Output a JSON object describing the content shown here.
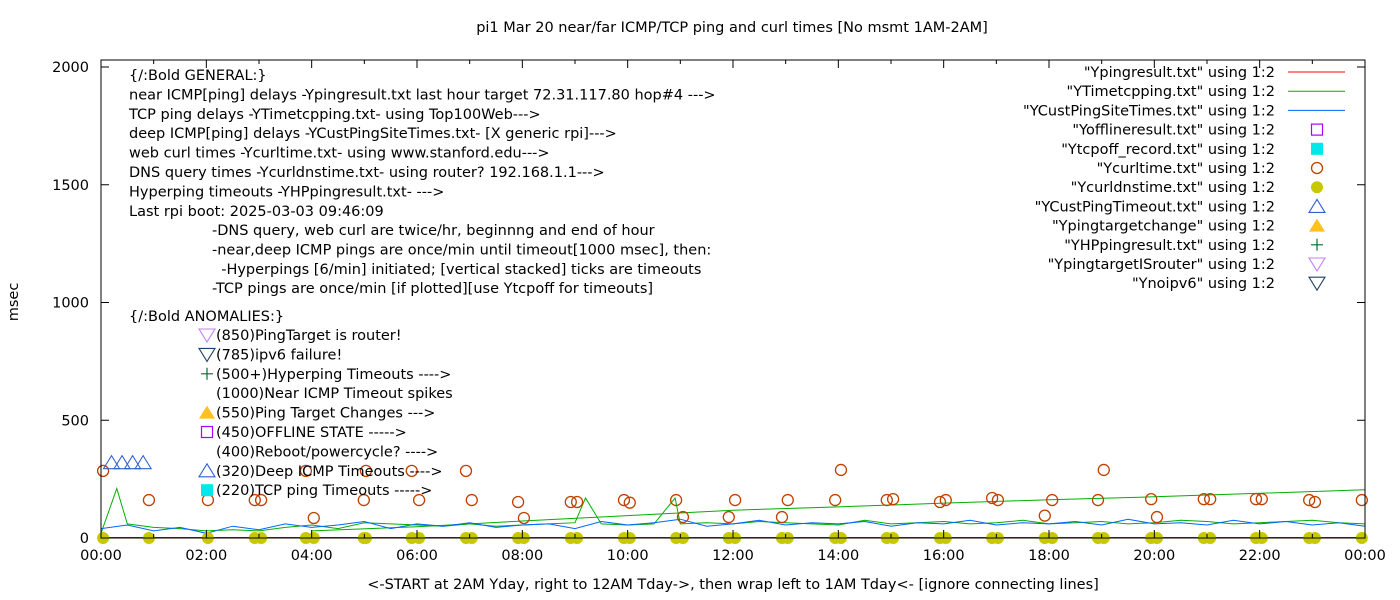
{
  "chart_data": {
    "type": "line",
    "title": "pi1 Mar 20  near/far ICMP/TCP ping and curl times [No msmt 1AM-2AM]",
    "xlabel": "<-START at 2AM Yday, right to 12AM Tday->, then wrap left to 1AM Tday<- [ignore connecting lines]",
    "ylabel": "msec",
    "xlim": [
      0,
      24
    ],
    "ylim": [
      0,
      2040
    ],
    "x_unit": "hour of day",
    "xticks": [
      "00:00",
      "02:00",
      "04:00",
      "06:00",
      "08:00",
      "10:00",
      "12:00",
      "14:00",
      "16:00",
      "18:00",
      "20:00",
      "22:00",
      "00:00"
    ],
    "yticks": [
      "0",
      "500",
      "1000",
      "1500",
      "2000"
    ],
    "grid": false,
    "legend_placement": "top-right",
    "series": [
      {
        "name": "\"Ypingresult.txt\" using 1:2",
        "style": "line",
        "color": "#ff0000",
        "x": [
          0,
          24
        ],
        "y": [
          2,
          2
        ]
      },
      {
        "name": "\"YTimetcpping.txt\" using 1:2",
        "style": "line",
        "color": "#00b000",
        "x": [
          0,
          0.3,
          0.5,
          1,
          1.5,
          2,
          2.5,
          3,
          3.5,
          4,
          4.5,
          5,
          5.5,
          6,
          6.5,
          7,
          7.5,
          8,
          8.5,
          9,
          9.2,
          9.5,
          10,
          10.5,
          10.9,
          11,
          11.5,
          12,
          12.5,
          13,
          13.5,
          14,
          14.5,
          15,
          15.5,
          16,
          16.5,
          17,
          17.5,
          18,
          18.5,
          19,
          19.5,
          20,
          20.5,
          21,
          21.5,
          22,
          22.5,
          23,
          23.5,
          24
        ],
        "y": [
          20,
          210,
          60,
          45,
          40,
          30,
          35,
          30,
          45,
          55,
          40,
          65,
          60,
          55,
          50,
          60,
          50,
          55,
          60,
          65,
          170,
          60,
          55,
          60,
          170,
          60,
          65,
          60,
          70,
          65,
          60,
          55,
          75,
          60,
          65,
          70,
          60,
          65,
          75,
          60,
          65,
          70,
          60,
          65,
          75,
          70,
          60,
          65,
          70,
          75,
          65,
          60
        ]
      },
      {
        "name": "\"YTimetcpping.txt\" trend",
        "style": "line",
        "color": "#00b000",
        "x": [
          4,
          6,
          8,
          10,
          12,
          14,
          16,
          18,
          20,
          22,
          24
        ],
        "y": [
          30,
          48,
          72,
          95,
          118,
          132,
          148,
          162,
          175,
          190,
          205
        ]
      },
      {
        "name": "\"YCustPingSiteTimes.txt\" using 1:2",
        "style": "line",
        "color": "#0066ff",
        "x": [
          0,
          0.5,
          1,
          1.5,
          2,
          2.5,
          3,
          3.5,
          4,
          4.5,
          5,
          5.5,
          6,
          6.5,
          7,
          7.5,
          8,
          8.5,
          9,
          9.5,
          10,
          10.5,
          11,
          11.5,
          12,
          12.5,
          13,
          13.5,
          14,
          14.5,
          15,
          15.5,
          16,
          16.5,
          17,
          17.5,
          18,
          18.5,
          19,
          19.5,
          20,
          20.5,
          21,
          21.5,
          22,
          22.5,
          23,
          23.5,
          24
        ],
        "y": [
          40,
          55,
          30,
          45,
          20,
          50,
          35,
          60,
          45,
          55,
          70,
          40,
          60,
          50,
          65,
          45,
          55,
          60,
          40,
          70,
          55,
          65,
          80,
          50,
          60,
          75,
          55,
          65,
          60,
          70,
          50,
          65,
          60,
          75,
          55,
          65,
          60,
          70,
          55,
          80,
          60,
          65,
          55,
          75,
          60,
          70,
          55,
          65,
          50
        ]
      },
      {
        "name": "\"Yofflineresult.txt\" using 1:2",
        "style": "open-square",
        "color": "#b000ff",
        "x": [],
        "y": []
      },
      {
        "name": "\"Ytcpoff_record.txt\" using 1:2",
        "style": "filled-square",
        "color": "#00e8e8",
        "x": [],
        "y": []
      },
      {
        "name": "\"Ycurltime.txt\" using 1:2",
        "style": "open-circle",
        "color": "#c04000",
        "x": [
          0.04,
          0.91,
          2.03,
          2.92,
          3.04,
          3.89,
          4.04,
          4.99,
          5.03,
          5.9,
          6.04,
          6.93,
          7.04,
          7.92,
          8.03,
          8.92,
          9.04,
          9.93,
          10.04,
          10.92,
          11.05,
          11.92,
          12.04,
          12.93,
          13.04,
          13.94,
          14.05,
          14.92,
          15.04,
          15.93,
          16.04,
          16.92,
          17.03,
          17.92,
          18.06,
          18.93,
          19.04,
          19.94,
          20.05,
          20.94,
          21.06,
          21.93,
          22.04,
          22.94,
          23.05,
          23.94
        ],
        "y": [
          285,
          161,
          161,
          161,
          161,
          285,
          85,
          161,
          285,
          285,
          161,
          285,
          161,
          153,
          85,
          153,
          153,
          161,
          150,
          161,
          89,
          89,
          161,
          89,
          161,
          161,
          289,
          161,
          165,
          153,
          161,
          170,
          161,
          95,
          161,
          161,
          289,
          165,
          89,
          165,
          165,
          165,
          165,
          161,
          153,
          161
        ]
      },
      {
        "name": "\"Ycurldnstime.txt\" using 1:2",
        "style": "filled-circle",
        "color": "#c8c800",
        "x": [
          0.04,
          0.91,
          2.03,
          2.92,
          3.04,
          3.89,
          4.04,
          4.99,
          5.03,
          5.9,
          6.04,
          6.93,
          7.04,
          7.92,
          8.03,
          8.92,
          9.04,
          9.93,
          10.04,
          10.92,
          11.05,
          11.92,
          12.04,
          12.93,
          13.04,
          13.94,
          14.05,
          14.92,
          15.04,
          15.93,
          16.04,
          16.92,
          17.03,
          17.92,
          18.06,
          18.93,
          19.04,
          19.94,
          20.05,
          20.94,
          21.06,
          21.93,
          22.04,
          22.94,
          23.05,
          23.94
        ],
        "y": [
          0,
          0,
          0,
          0,
          0,
          0,
          0,
          0,
          0,
          0,
          0,
          0,
          0,
          0,
          0,
          0,
          0,
          0,
          0,
          0,
          0,
          0,
          0,
          0,
          0,
          0,
          0,
          0,
          0,
          0,
          0,
          0,
          0,
          0,
          0,
          0,
          0,
          0,
          0,
          0,
          0,
          0,
          0,
          0,
          0,
          0
        ]
      },
      {
        "name": "\"YCustPingTimeout.txt\" using 1:2",
        "style": "open-triangle-up",
        "color": "#3060d0",
        "x": [
          0.2,
          0.4,
          0.6,
          0.8
        ],
        "y": [
          320,
          320,
          320,
          320
        ]
      },
      {
        "name": "\"Ypingtargetchange\" using 1:2",
        "style": "filled-triangle-up",
        "color": "#ffc020",
        "x": [],
        "y": []
      },
      {
        "name": "\"YHPpingresult.txt\" using 1:2",
        "style": "plus",
        "color": "#007030",
        "x": [],
        "y": []
      },
      {
        "name": "\"YpingtargetISrouter\" using 1:2",
        "style": "open-triangle-down",
        "color": "#c080ff",
        "x": [],
        "y": []
      },
      {
        "name": "\"Ynoipv6\" using 1:2",
        "style": "open-triangle-down",
        "color": "#204060",
        "x": [],
        "y": []
      }
    ],
    "annotations": {
      "general": [
        "{/:Bold GENERAL:}",
        "near ICMP[ping] delays -Ypingresult.txt last hour target 72.31.117.80 hop#4 --->",
        "TCP ping delays -YTimetcpping.txt- using Top100Web--->",
        "deep ICMP[ping] delays -YCustPingSiteTimes.txt- [X generic rpi]--->",
        "web curl times -Ycurltime.txt- using www.stanford.edu--->",
        "DNS query times -Ycurldnstime.txt- using router? 192.168.1.1--->",
        "Hyperping timeouts -YHPpingresult.txt- --->",
        "Last rpi boot: 2025-03-03 09:46:09"
      ],
      "notes": [
        "-DNS query, web curl are twice/hr, beginnng and end of hour",
        "-near,deep ICMP pings are once/min until timeout[1000 msec], then:",
        "  -Hyperpings [6/min] initiated; [vertical stacked] ticks are timeouts",
        "-TCP pings are once/min [if plotted][use Ytcpoff for timeouts]"
      ],
      "anomalies_header": "{/:Bold ANOMALIES:}",
      "anomalies": [
        {
          "symbol": "open-triangle-down",
          "color": "#c080ff",
          "text": "(850)PingTarget is router!"
        },
        {
          "symbol": "open-triangle-down",
          "color": "#204060",
          "text": "(785)ipv6 failure!"
        },
        {
          "symbol": "plus",
          "color": "#007030",
          "text": "(500+)Hyperping Timeouts ---->"
        },
        {
          "symbol": "none",
          "color": "",
          "text": "(1000)Near ICMP Timeout spikes"
        },
        {
          "symbol": "filled-triangle-up",
          "color": "#ffc020",
          "text": "(550)Ping Target Changes --->"
        },
        {
          "symbol": "open-square",
          "color": "#b000ff",
          "text": "(450)OFFLINE STATE ----->"
        },
        {
          "symbol": "none",
          "color": "",
          "text": "(400)Reboot/powercycle? ---->"
        },
        {
          "symbol": "open-triangle-up",
          "color": "#3060d0",
          "text": "(320)Deep ICMP Timeouts ---->"
        },
        {
          "symbol": "filled-square",
          "color": "#00e8e8",
          "text": "(220)TCP ping Timeouts ----->"
        }
      ]
    }
  }
}
